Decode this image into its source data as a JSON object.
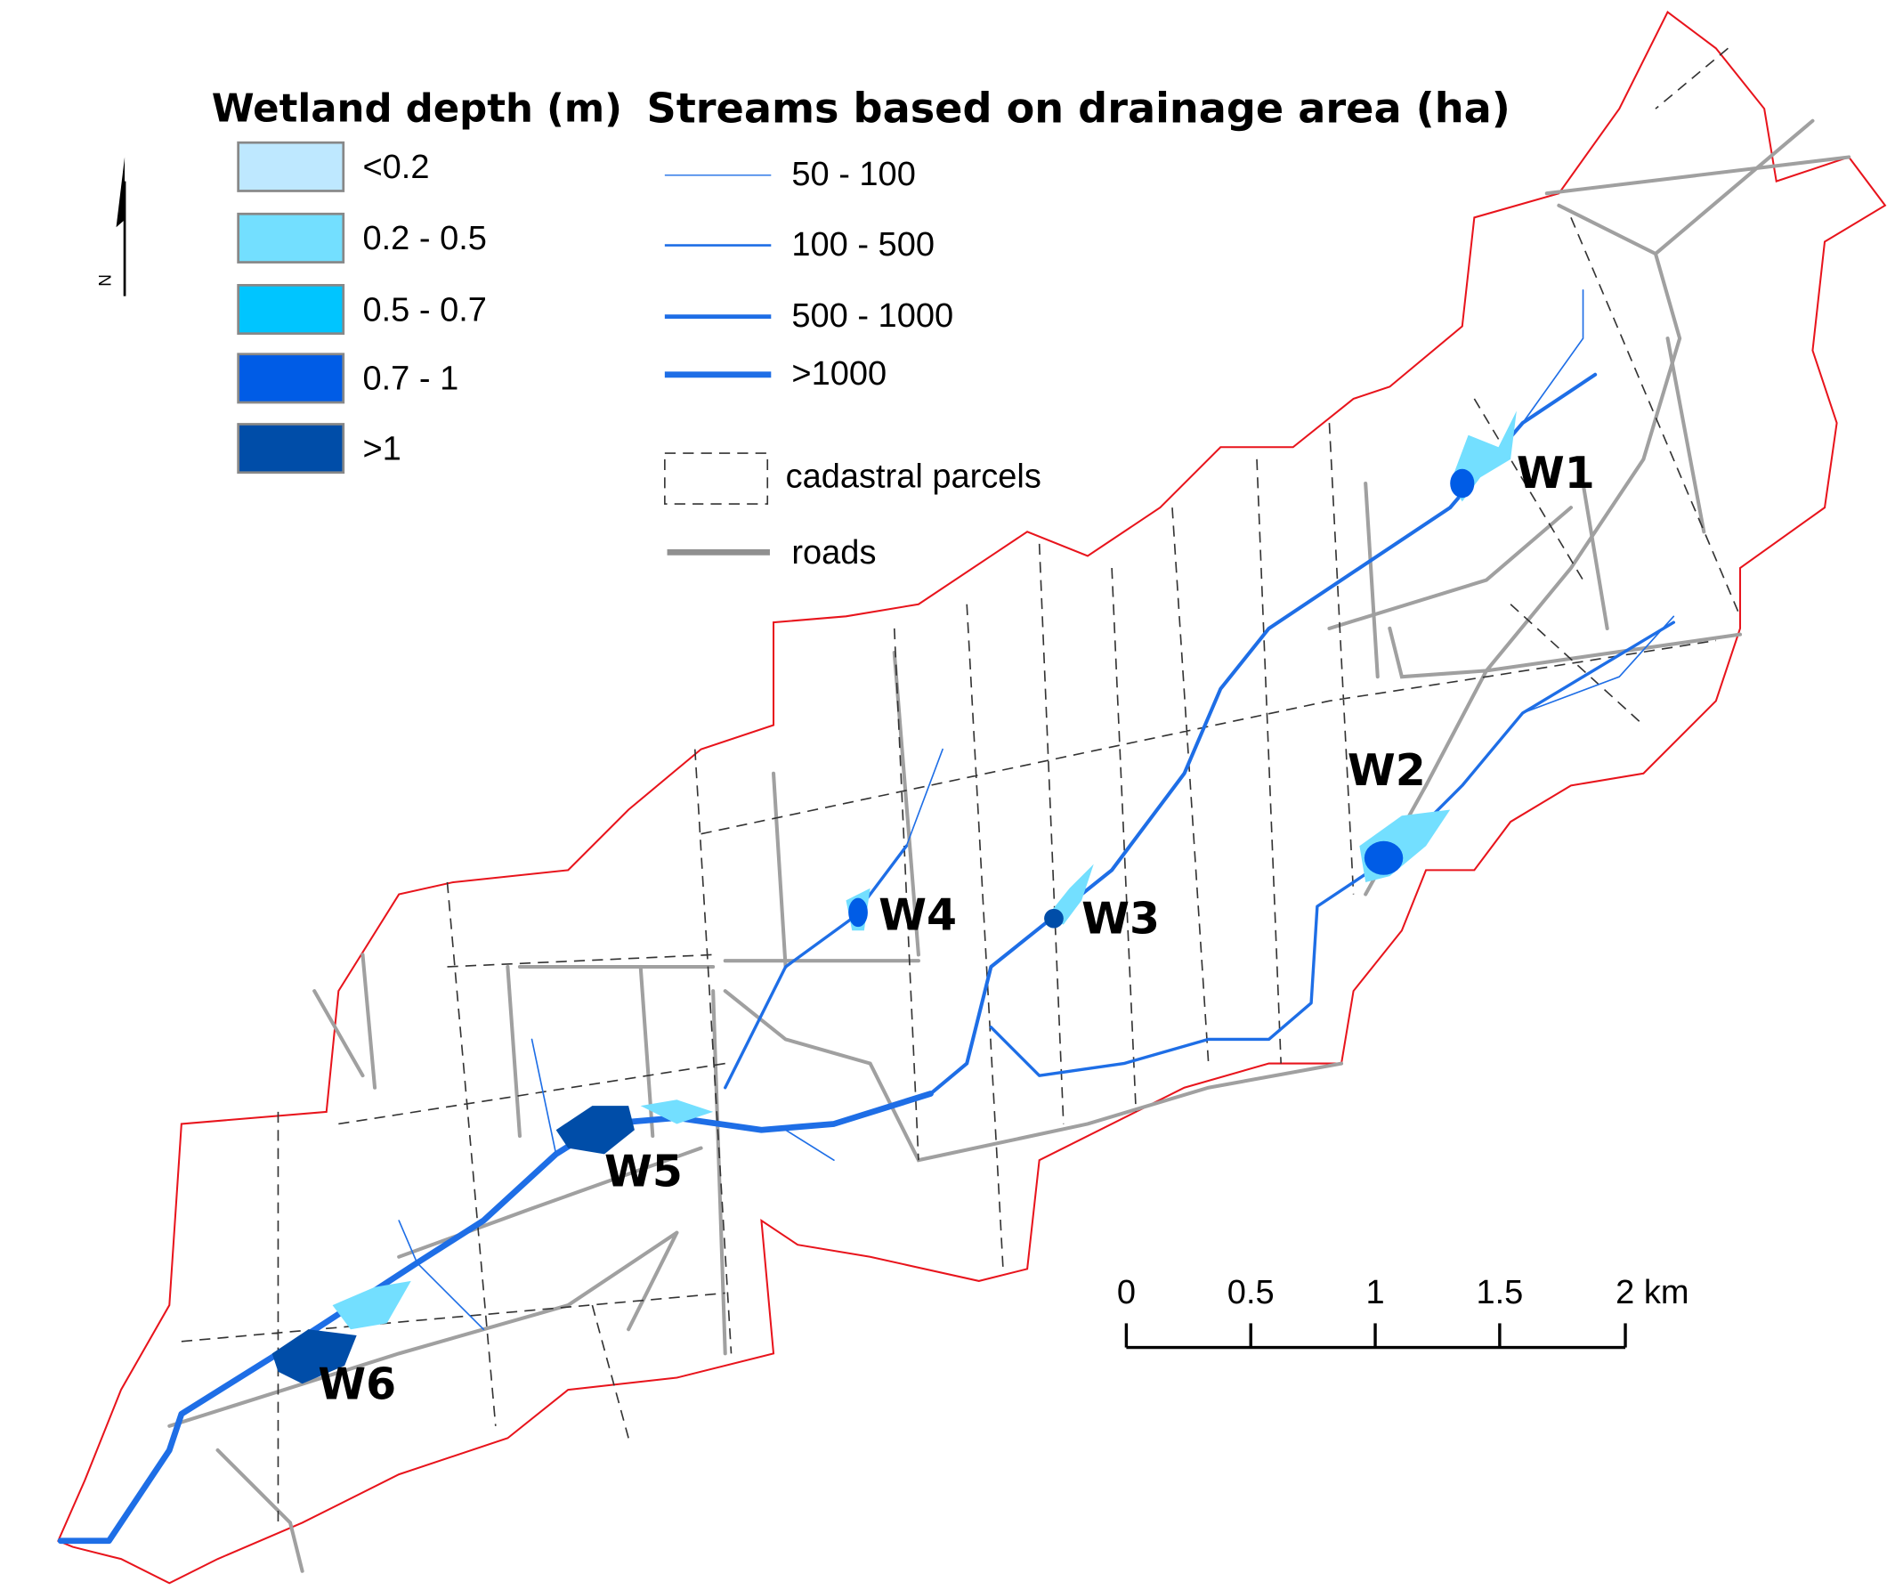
{
  "legend_wetland": {
    "title": "Wetland depth (m)",
    "items": [
      "<0.2",
      "0.2 - 0.5",
      "0.5 - 0.7",
      "0.7 - 1",
      ">1"
    ]
  },
  "legend_streams": {
    "title": "Streams based on drainage area (ha)",
    "items": [
      "50 - 100",
      "100 - 500",
      "500 - 1000",
      ">1000"
    ]
  },
  "legend_other": {
    "items": [
      "cadastral parcels",
      "roads"
    ]
  },
  "wetland_labels": [
    "W1",
    "W2",
    "W3",
    "W4",
    "W5",
    "W6"
  ],
  "scale_bar": {
    "labels": [
      "0",
      "0.5",
      "1",
      "1.5",
      "2 km"
    ]
  },
  "north_arrow": "N"
}
